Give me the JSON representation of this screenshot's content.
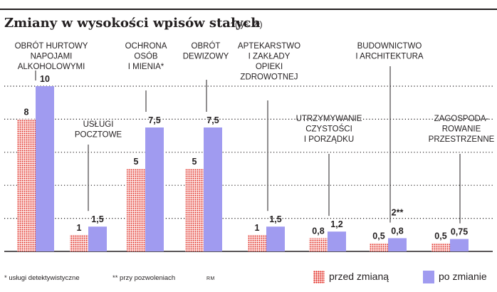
{
  "title": "Zmiany w wysokości wpisów stałych",
  "unit": "(tys. zł)",
  "footnotes": {
    "a": "* usługi detektywistyczne",
    "b": "** przy pozwoleniach",
    "author": "RM"
  },
  "legend": {
    "before": "przed zmianą",
    "after": "po zmianie"
  },
  "colors": {
    "before_fill": "#fbe2e0",
    "before_dots": "#e0221a",
    "after": "#a09bf0",
    "text": "#231f20",
    "grid": "#231f20"
  },
  "chart_data": {
    "type": "bar",
    "title": "Zmiany w wysokości wpisów stałych",
    "unit": "(tys. zł)",
    "ylim": [
      0,
      10
    ],
    "gridlines": [
      2,
      4,
      6,
      8,
      10
    ],
    "grid": true,
    "legend_position": "bottom-right",
    "categories": [
      [
        "OBRÓT HURTOWY",
        "NAPOJAMI",
        "ALKOHOLOWYMI"
      ],
      [
        "USŁUGI",
        "POCZTOWE"
      ],
      [
        "OCHRONA",
        "OSÓB",
        "I MIENIA*"
      ],
      [
        "OBRÓT",
        "DEWIZOWY"
      ],
      [
        "APTEKARSTWO",
        "I ZAKŁADY",
        "OPIEKI",
        "ZDROWOTNEJ"
      ],
      [
        "UTRZYMYWANIE",
        "CZYSTOŚCI",
        "I PORZĄDKU"
      ],
      [
        "BUDOWNICTWO",
        "I ARCHITEKTURA"
      ],
      [
        "ZAGOSPODA-",
        "ROWANIE",
        "PRZESTRZENNE"
      ]
    ],
    "series": [
      {
        "name": "przed zmianą",
        "values": [
          8,
          1,
          5,
          5,
          1,
          0.8,
          0.5,
          0.5
        ],
        "labels": [
          "8",
          "1",
          "5",
          "5",
          "1",
          "0,8",
          "0,5",
          "0,5"
        ]
      },
      {
        "name": "po zmianie",
        "values": [
          10,
          1.5,
          7.5,
          7.5,
          1.5,
          1.2,
          0.8,
          0.75
        ],
        "labels": [
          "10",
          "1,5",
          "7,5",
          "7,5",
          "1,5",
          "1,2",
          "0,8",
          "0,75"
        ]
      }
    ],
    "extra_labels": [
      {
        "category_index": 6,
        "value": 2,
        "text": "2**"
      }
    ]
  }
}
